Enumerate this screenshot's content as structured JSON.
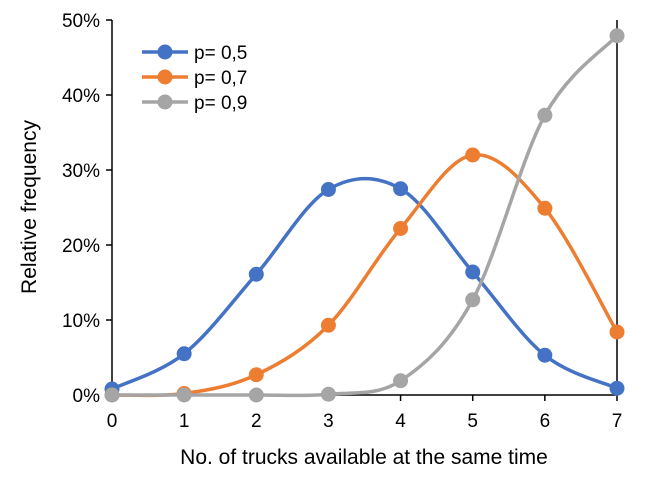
{
  "chart_data": {
    "type": "line",
    "title": "",
    "xlabel": "No. of trucks available at the same time",
    "ylabel": "Relative frequency",
    "x": [
      0,
      1,
      2,
      3,
      4,
      5,
      6,
      7
    ],
    "x_tick_labels": [
      "0",
      "1",
      "2",
      "3",
      "4",
      "5",
      "6",
      "7"
    ],
    "xlim": [
      0,
      7
    ],
    "ylim": [
      0,
      50
    ],
    "y_tick_labels": [
      "0%",
      "10%",
      "20%",
      "30%",
      "40%",
      "50%"
    ],
    "y_unit": "%",
    "grid": false,
    "legend_position": "top-left",
    "smooth": true,
    "series": [
      {
        "name": "p= 0,5",
        "color": "#4472C4",
        "values": [
          0.8,
          5.5,
          16.1,
          27.4,
          27.5,
          16.4,
          5.3,
          0.9
        ]
      },
      {
        "name": "p= 0,7",
        "color": "#ED7D31",
        "values": [
          0.0,
          0.2,
          2.7,
          9.3,
          22.2,
          32.0,
          24.9,
          8.4
        ]
      },
      {
        "name": "p= 0,9",
        "color": "#A5A5A5",
        "values": [
          0.0,
          0.0,
          0.0,
          0.1,
          1.9,
          12.7,
          37.3,
          47.9
        ]
      }
    ]
  }
}
